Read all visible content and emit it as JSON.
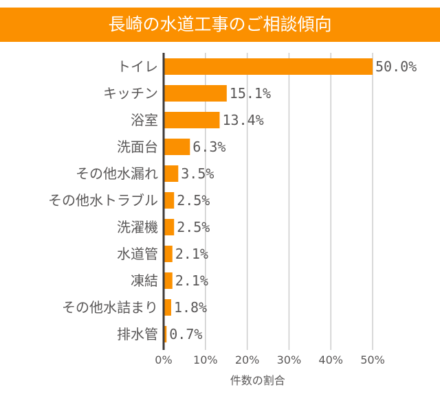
{
  "chart_data": {
    "type": "bar",
    "orientation": "horizontal",
    "title": "長崎の水道工事のご相談傾向",
    "xlabel": "件数の割合",
    "ylabel": "",
    "categories": [
      "トイレ",
      "キッチン",
      "浴室",
      "洗面台",
      "その他水漏れ",
      "その他水トラブル",
      "洗濯機",
      "水道管",
      "凍結",
      "その他水詰まり",
      "排水管"
    ],
    "values": [
      50.0,
      15.1,
      13.4,
      6.3,
      3.5,
      2.5,
      2.5,
      2.1,
      2.1,
      1.8,
      0.7
    ],
    "data_labels": [
      "50.0%",
      "15.1%",
      "13.4%",
      "6.3%",
      "3.5%",
      "2.5%",
      "2.5%",
      "2.1%",
      "2.1%",
      "1.8%",
      "0.7%"
    ],
    "xlim": [
      0,
      50
    ],
    "ticks": [
      "0%",
      "10%",
      "20%",
      "30%",
      "40%",
      "50%"
    ],
    "grid": true,
    "legend": "none",
    "colors": {
      "bar": "#fb9000",
      "title_bg": "#fb9000",
      "text": "#595757",
      "grid": "#cccccc",
      "axis": "#3e3a39"
    }
  }
}
